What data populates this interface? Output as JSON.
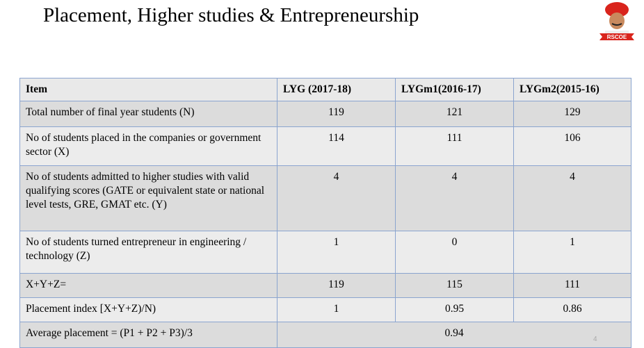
{
  "header": {
    "title": "Placement, Higher studies & Entrepreneurship",
    "logo_text": "RSCOE"
  },
  "table": {
    "columns": [
      "Item",
      "LYG (2017-18)",
      "LYGm1(2016-17)",
      "LYGm2(2015-16)"
    ],
    "rows": [
      [
        "Total number of final year students (N)",
        "119",
        "121",
        "129"
      ],
      [
        "No of students placed in the companies or government sector (X)",
        "114",
        "111",
        "106"
      ],
      [
        "No of students admitted to higher studies with valid qualifying scores (GATE or equivalent state or national level tests, GRE, GMAT etc. (Y)",
        "4",
        "4",
        "4"
      ],
      [
        "No of students turned entrepreneur in engineering / technology (Z)",
        "1",
        "0",
        "1"
      ],
      [
        "X+Y+Z=",
        "119",
        "115",
        "111"
      ],
      [
        "Placement index [X+Y+Z)/N)",
        "1",
        "0.95",
        "0.86"
      ],
      [
        "Average placement = (P1 + P2 + P3)/3",
        "0.94"
      ]
    ]
  },
  "page_number": "4"
}
